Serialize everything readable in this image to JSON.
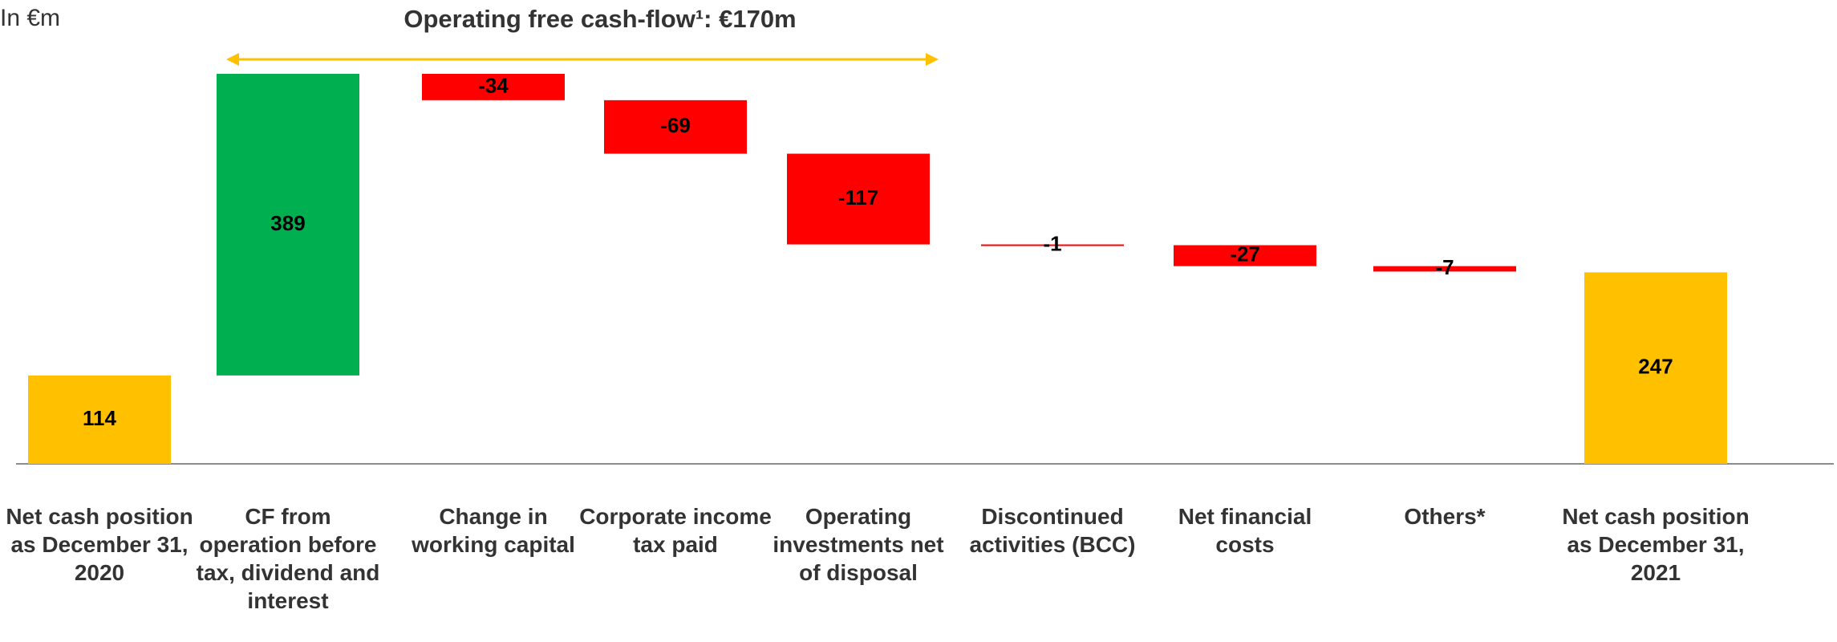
{
  "chart_data": {
    "type": "waterfall",
    "title": "Operating free cash-flow¹: €170m",
    "unit_label": "In €m",
    "categories": [
      "Net cash position as December 31, 2020",
      "CF from operation before tax, dividend and interest",
      "Change in working capital",
      "Corporate income tax paid",
      "Operating investments net of disposal",
      "Discontinued activities (BCC)",
      "Net financial costs",
      "Others*",
      "Net cash position as December 31, 2021"
    ],
    "values": [
      114,
      389,
      -34,
      -69,
      -117,
      -1,
      -27,
      -7,
      247
    ],
    "colors": [
      "#ffc000",
      "#00b050",
      "#ff0000",
      "#ff0000",
      "#ff0000",
      "#ff0000",
      "#ff0000",
      "#ff0000",
      "#ffc000"
    ],
    "arrow_color": "#ffc000"
  }
}
